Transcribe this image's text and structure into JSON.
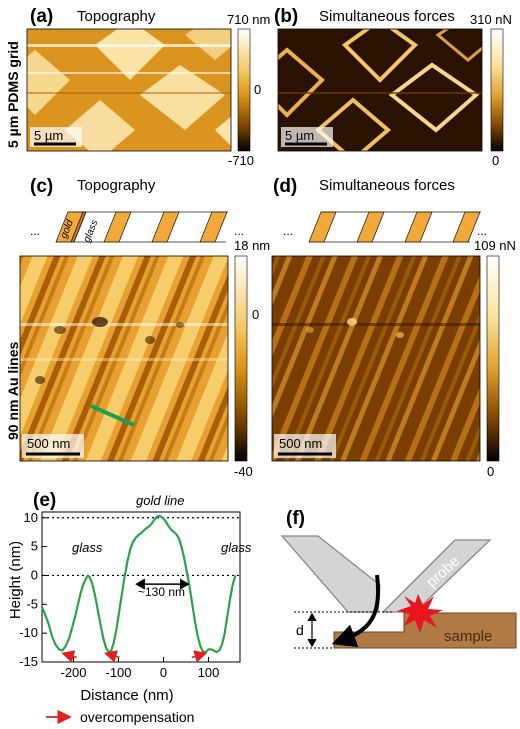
{
  "panels": {
    "a": {
      "letter": "(a)",
      "title": "Topography",
      "cbar_max": "710 nm",
      "cbar_mid": "0",
      "cbar_min": "-710",
      "scalebar": "5 µm"
    },
    "b": {
      "letter": "(b)",
      "title": "Simultaneous forces",
      "cbar_max": "310 nN",
      "cbar_min": "0",
      "scalebar": "5 µm"
    },
    "c": {
      "letter": "(c)",
      "title": "Topography",
      "cbar_max": "18 nm",
      "cbar_mid": "0",
      "cbar_min": "-40",
      "scalebar": "500 nm",
      "schematic_gold": "gold",
      "schematic_glass": "glass",
      "ellipsis": "..."
    },
    "d": {
      "letter": "(d)",
      "title": "Simultaneous forces",
      "cbar_max": "109 nN",
      "cbar_min": "0",
      "scalebar": "500 nm",
      "ellipsis": "..."
    },
    "e": {
      "letter": "(e)"
    },
    "f": {
      "letter": "(f)",
      "probe": "probe",
      "sample": "sample",
      "d_label": "d"
    }
  },
  "row_labels": {
    "top": "5 µm PDMS grid",
    "middle": "90 nm Au lines"
  },
  "chart_data": {
    "type": "line",
    "xlabel": "Distance (nm)",
    "ylabel": "Height (nm)",
    "xlim": [
      -270,
      170
    ],
    "ylim": [
      -15,
      11
    ],
    "xticks": [
      -200,
      -100,
      0,
      100
    ],
    "yticks": [
      -15,
      -10,
      -5,
      0,
      5,
      10
    ],
    "hlines": [
      10,
      0
    ],
    "series": [
      {
        "color": "#2ca34a",
        "x": [
          -270,
          -262,
          -255,
          -248,
          -240,
          -232,
          -225,
          -218,
          -210,
          -203,
          -196,
          -190,
          -184,
          -178,
          -172,
          -168,
          -164,
          -158,
          -152,
          -146,
          -140,
          -134,
          -128,
          -122,
          -116,
          -110,
          -104,
          -98,
          -92,
          -86,
          -80,
          -74,
          -68,
          -62,
          -56,
          -50,
          -44,
          -38,
          -32,
          -26,
          -20,
          -14,
          -8,
          -2,
          4,
          10,
          16,
          22,
          28,
          34,
          40,
          46,
          52,
          58,
          64,
          70,
          76,
          82,
          88,
          94,
          100,
          106,
          112,
          118,
          124,
          130,
          136,
          142,
          148,
          154,
          160
        ],
        "y": [
          -5.5,
          -7,
          -8.5,
          -10.5,
          -12,
          -12.8,
          -13,
          -12.3,
          -11,
          -9,
          -7,
          -5,
          -3,
          -1.5,
          -0.5,
          0,
          -0.3,
          -1.5,
          -3.5,
          -6,
          -8.5,
          -10.8,
          -12.5,
          -13.3,
          -13,
          -11.5,
          -9,
          -6,
          -3,
          0,
          2.5,
          4.5,
          5.8,
          6.5,
          7,
          7.3,
          7.8,
          8.2,
          8.5,
          9,
          9.7,
          10.2,
          10.3,
          10,
          9.5,
          8.7,
          8,
          7.6,
          7.2,
          6.5,
          5,
          3,
          0.5,
          -2,
          -5,
          -8,
          -10.5,
          -12.3,
          -13.2,
          -13.3,
          -12.8,
          -12.8,
          -13,
          -13.3,
          -13,
          -12,
          -10,
          -7,
          -4,
          -1.5,
          0
        ]
      }
    ],
    "annotations": [
      "gold line",
      "glass",
      "glass",
      "~130 nm"
    ],
    "legend_text": "overcompensation"
  }
}
